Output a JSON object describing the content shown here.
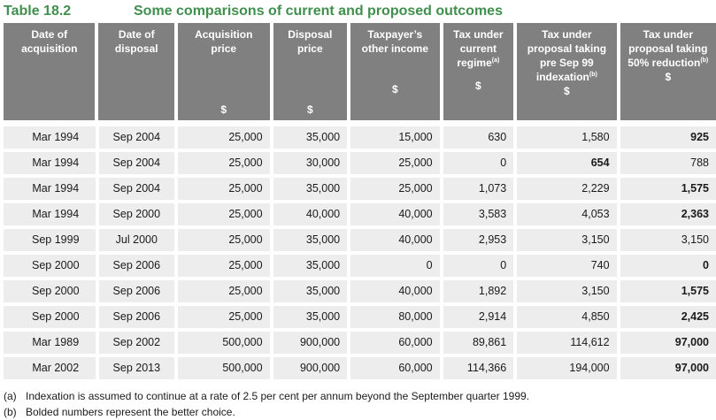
{
  "table": {
    "number": "Table 18.2",
    "title": "Some comparisons of current and proposed outcomes",
    "headers": [
      {
        "label": "Date of\nacquisition",
        "sup": "",
        "unit": ""
      },
      {
        "label": "Date of\ndisposal",
        "sup": "",
        "unit": ""
      },
      {
        "label": "Acquisition\nprice",
        "sup": "",
        "unit": "$"
      },
      {
        "label": "Disposal\nprice",
        "sup": "",
        "unit": "$"
      },
      {
        "label": "Taxpayer’s\nother income",
        "sup": "",
        "unit": "$"
      },
      {
        "label": "Tax under\ncurrent\nregime",
        "sup": "(a)",
        "unit": "$"
      },
      {
        "label": "Tax under\nproposal taking\npre Sep 99\nindexation",
        "sup": "(b)",
        "unit": "$"
      },
      {
        "label": "Tax under\nproposal taking\n50% reduction",
        "sup": "(b)",
        "unit": "$"
      }
    ],
    "rows": [
      {
        "cells": [
          "Mar 1994",
          "Sep 2004",
          "25,000",
          "35,000",
          "15,000",
          "630",
          "1,580",
          "925"
        ],
        "bold": [
          7
        ]
      },
      {
        "cells": [
          "Mar 1994",
          "Sep 2004",
          "25,000",
          "30,000",
          "25,000",
          "0",
          "654",
          "788"
        ],
        "bold": [
          6
        ]
      },
      {
        "cells": [
          "Mar 1994",
          "Sep 2004",
          "25,000",
          "35,000",
          "25,000",
          "1,073",
          "2,229",
          "1,575"
        ],
        "bold": [
          7
        ]
      },
      {
        "cells": [
          "Mar 1994",
          "Sep 2000",
          "25,000",
          "40,000",
          "40,000",
          "3,583",
          "4,053",
          "2,363"
        ],
        "bold": [
          7
        ]
      },
      {
        "cells": [
          "Sep 1999",
          "Jul 2000",
          "25,000",
          "35,000",
          "40,000",
          "2,953",
          "3,150",
          "3,150"
        ],
        "bold": []
      },
      {
        "cells": [
          "Sep 2000",
          "Sep 2006",
          "25,000",
          "35,000",
          "0",
          "0",
          "740",
          "0"
        ],
        "bold": [
          7
        ]
      },
      {
        "cells": [
          "Sep 2000",
          "Sep 2006",
          "25,000",
          "35,000",
          "40,000",
          "1,892",
          "3,150",
          "1,575"
        ],
        "bold": [
          7
        ]
      },
      {
        "cells": [
          "Sep 2000",
          "Sep 2006",
          "25,000",
          "35,000",
          "80,000",
          "2,914",
          "4,850",
          "2,425"
        ],
        "bold": [
          7
        ]
      },
      {
        "cells": [
          "Mar 1989",
          "Sep 2002",
          "500,000",
          "900,000",
          "60,000",
          "89,861",
          "114,612",
          "97,000"
        ],
        "bold": [
          7
        ]
      },
      {
        "cells": [
          "Mar 2002",
          "Sep 2013",
          "500,000",
          "900,000",
          "60,000",
          "114,366",
          "194,000",
          "97,000"
        ],
        "bold": [
          7
        ]
      }
    ]
  },
  "notes": [
    {
      "tag": "(a)",
      "text": "Indexation is assumed to continue at a rate of 2.5 per cent per annum beyond the September quarter 1999."
    },
    {
      "tag": "(b)",
      "text": "Bolded numbers represent the better choice."
    }
  ],
  "colors": {
    "title": "#3f8f4d",
    "header_bg": "#808080",
    "cell_bg": "#ededed"
  }
}
